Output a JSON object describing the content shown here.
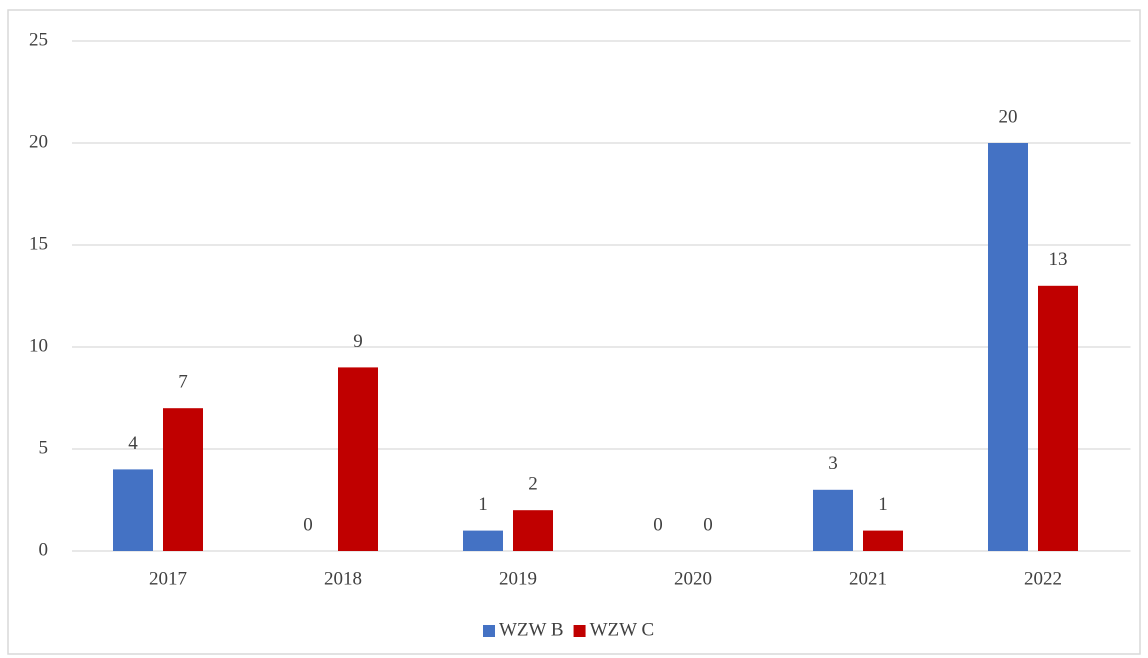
{
  "chart_data": {
    "type": "bar",
    "categories": [
      "2017",
      "2018",
      "2019",
      "2020",
      "2021",
      "2022"
    ],
    "series": [
      {
        "name": "WZW B",
        "color": "#4472c4",
        "values": [
          4,
          0,
          1,
          0,
          3,
          20
        ]
      },
      {
        "name": "WZW C",
        "color": "#c00000",
        "values": [
          7,
          9,
          2,
          0,
          1,
          13
        ]
      }
    ],
    "ylim": [
      0,
      25
    ],
    "yticks": [
      0,
      5,
      10,
      15,
      20,
      25
    ],
    "grid": true,
    "legend": "bottom"
  }
}
